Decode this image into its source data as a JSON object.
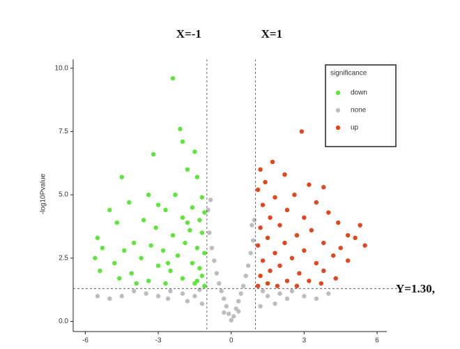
{
  "chart_data": {
    "type": "scatter",
    "y_label": "-log10Pvalue",
    "legend_title": "significance",
    "legend_position": "top-right",
    "annotations": [
      "X=-1",
      "X=1",
      "Y=1.30,"
    ],
    "thresholds": {
      "x": [
        -1,
        1
      ],
      "y": 1.3
    },
    "xlim": [
      -6.5,
      6.4
    ],
    "ylim": [
      -0.4,
      10.35
    ],
    "xticks": [
      -6,
      -3,
      0,
      3,
      6
    ],
    "yticks": [
      {
        "value": 0,
        "label": "0.0"
      },
      2.5,
      {
        "value": 5,
        "label": "5.0"
      },
      7.5,
      {
        "value": 10,
        "label": "10.0"
      }
    ],
    "series": [
      {
        "name": "down",
        "color": "#5de63a",
        "x": [
          -2.4,
          -2.1,
          -2.0,
          -1.5,
          -3.2,
          -4.5,
          -1.8,
          -1.4,
          -3.4,
          -2.3,
          -1.2,
          -4.2,
          -3.0,
          -1.6,
          -5.0,
          -2.7,
          -1.1,
          -3.6,
          -2.0,
          -1.3,
          -4.7,
          -3.1,
          -1.7,
          -5.5,
          -2.4,
          -1.2,
          -4.0,
          -3.3,
          -1.9,
          -5.3,
          -4.4,
          -2.8,
          -1.4,
          -5.6,
          -3.7,
          -2.2,
          -1.1,
          -4.8,
          -3.0,
          -1.6,
          -5.4,
          -4.1,
          -2.5,
          -1.3,
          -4.6,
          -3.4,
          -2.0,
          -1.2,
          -3.9,
          -2.7,
          -1.5,
          -1.1,
          -1.8,
          -2.6,
          -1.4
        ],
        "y": [
          9.6,
          7.6,
          7.1,
          6.7,
          6.6,
          5.7,
          6.0,
          5.7,
          5.0,
          5.0,
          4.9,
          4.7,
          4.6,
          4.5,
          4.4,
          4.4,
          4.3,
          4.0,
          4.1,
          4.0,
          3.9,
          3.7,
          3.6,
          3.3,
          3.4,
          3.5,
          3.1,
          3.0,
          3.1,
          2.9,
          2.8,
          2.8,
          2.9,
          2.5,
          2.5,
          2.6,
          2.7,
          2.3,
          2.2,
          2.3,
          2.0,
          1.9,
          2.0,
          2.1,
          1.7,
          1.6,
          1.7,
          1.8,
          1.5,
          1.5,
          1.5,
          1.4,
          3.9,
          2.3,
          1.6
        ]
      },
      {
        "name": "none",
        "color": "#bdbdbd",
        "x": [
          0,
          0.1,
          -0.1,
          0.2,
          -0.2,
          0.3,
          -0.3,
          0.4,
          -0.4,
          0.5,
          -0.5,
          0.6,
          -0.6,
          0.7,
          -0.7,
          0.8,
          -0.8,
          0.9,
          -0.9,
          0.95,
          -0.95,
          0.85,
          -0.85,
          1.5,
          2,
          2.5,
          3,
          3.5,
          4,
          1.2,
          1.8,
          2.3,
          -1.5,
          -2,
          -2.5,
          -3,
          -3.5,
          -4,
          -4.5,
          -5,
          -1.2,
          -1.8,
          -2.6,
          0.3,
          -0.3,
          1.3,
          -1.3,
          -5.5
        ],
        "y": [
          0.05,
          0.2,
          0.3,
          0.5,
          0.6,
          0.8,
          0.9,
          1.1,
          1.2,
          1.4,
          1.5,
          1.8,
          1.9,
          2.2,
          2.4,
          2.7,
          2.9,
          3.2,
          3.5,
          4.0,
          4.4,
          3.8,
          4.8,
          1.0,
          1.1,
          1.2,
          1.0,
          0.9,
          1.1,
          0.6,
          0.7,
          0.9,
          1.0,
          1.1,
          1.2,
          1.0,
          1.1,
          1.2,
          1.0,
          0.9,
          0.7,
          0.8,
          0.9,
          0.4,
          0.35,
          1.2,
          1.25,
          1.0
        ]
      },
      {
        "name": "up",
        "color": "#e2461c",
        "x": [
          2.9,
          1.7,
          1.2,
          2.2,
          1.4,
          3.2,
          3.8,
          1.1,
          2.6,
          1.8,
          3.5,
          1.3,
          2.3,
          4.0,
          3.0,
          1.6,
          4.4,
          2.0,
          5.3,
          1.2,
          3.3,
          2.7,
          4.8,
          1.5,
          5.1,
          3.8,
          2.2,
          1.1,
          4.5,
          5.5,
          3.0,
          1.8,
          4.2,
          2.5,
          1.3,
          4.8,
          3.5,
          2.0,
          1.6,
          3.8,
          2.8,
          1.2,
          4.3,
          3.2,
          2.3,
          1.5,
          1.1,
          2.7,
          3.7,
          1.9
        ],
        "y": [
          7.5,
          6.3,
          6.0,
          5.8,
          5.5,
          5.4,
          5.3,
          5.2,
          5.0,
          4.9,
          4.7,
          4.6,
          4.4,
          4.3,
          4.1,
          4.1,
          3.9,
          3.8,
          3.8,
          3.7,
          3.6,
          3.4,
          3.4,
          3.3,
          3.3,
          3.1,
          3.1,
          3.0,
          2.9,
          3.0,
          2.8,
          2.7,
          2.6,
          2.5,
          2.4,
          2.4,
          2.3,
          2.2,
          2.0,
          2.0,
          1.9,
          1.8,
          1.7,
          1.6,
          1.6,
          1.5,
          1.4,
          1.4,
          1.5,
          1.4
        ]
      }
    ]
  }
}
